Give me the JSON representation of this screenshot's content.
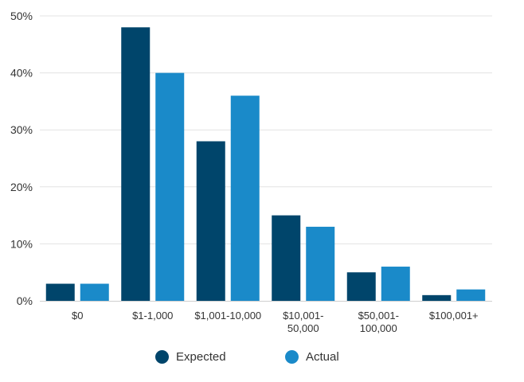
{
  "chart_data": {
    "type": "bar",
    "categories": [
      [
        "$0"
      ],
      [
        "$1-1,000"
      ],
      [
        "$1,001-10,000"
      ],
      [
        "$10,001-",
        "50,000"
      ],
      [
        "$50,001-",
        "100,000"
      ],
      [
        "$100,001+"
      ]
    ],
    "series": [
      {
        "name": "Expected",
        "color": "#00456b",
        "values": [
          3,
          48,
          28,
          15,
          5,
          1
        ]
      },
      {
        "name": "Actual",
        "color": "#1a8ac9",
        "values": [
          3,
          40,
          36,
          13,
          6,
          2
        ]
      }
    ],
    "y_ticks": [
      {
        "value": 0,
        "label": "0%"
      },
      {
        "value": 10,
        "label": "10%"
      },
      {
        "value": 20,
        "label": "20%"
      },
      {
        "value": 30,
        "label": "30%"
      },
      {
        "value": 40,
        "label": "40%"
      },
      {
        "value": 50,
        "label": "50%"
      }
    ],
    "ylim": [
      0,
      50
    ],
    "grid": true,
    "legend_position": "bottom-center",
    "title": "",
    "xlabel": "",
    "ylabel": ""
  },
  "legend": {
    "items": [
      {
        "label": "Expected",
        "color": "#00456b"
      },
      {
        "label": "Actual",
        "color": "#1a8ac9"
      }
    ]
  }
}
